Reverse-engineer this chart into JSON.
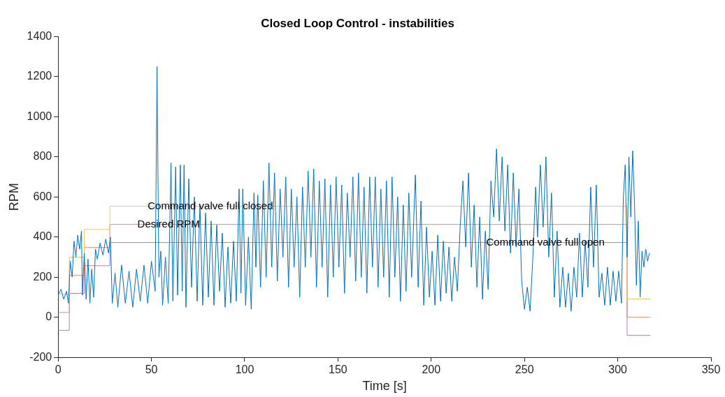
{
  "chart_data": {
    "type": "line",
    "title": "Closed Loop Control - instabilities",
    "xlabel": "Time [s]",
    "ylabel": "RPM",
    "xlim": [
      0,
      350
    ],
    "xticks": [
      0,
      50,
      100,
      150,
      200,
      250,
      300,
      350
    ],
    "ylim": [
      -200,
      1400
    ],
    "yticks": [
      -200,
      0,
      200,
      400,
      600,
      800,
      1000,
      1200,
      1400
    ],
    "grid": false,
    "marker": "none",
    "line_style": "solid",
    "annotations": [
      {
        "text": "Command valve full closed",
        "x": 48,
        "y": 554
      },
      {
        "text": "Desired RPM",
        "x": 42.5,
        "y": 463
      },
      {
        "text": "Command valve full open",
        "x": 229.5,
        "y": 373
      }
    ],
    "series": [
      {
        "type": "line",
        "color": "#0072bd",
        "x": [
          0,
          1.5,
          3,
          4.5,
          5.5,
          6.5,
          7.5,
          8.5,
          9.5,
          10.5,
          11.5,
          12.5,
          13,
          14,
          15,
          16,
          17,
          18,
          19,
          20,
          21,
          22.5,
          24,
          25.5,
          27,
          28,
          29,
          30.5,
          32,
          34,
          36,
          38,
          40,
          42,
          44,
          46,
          48,
          50,
          52,
          53,
          54,
          55,
          56,
          57.5,
          59,
          60.5,
          61.5,
          63,
          64,
          65.5,
          66.5,
          67.5,
          68.5,
          70,
          71.5,
          73,
          74.5,
          76,
          77.5,
          79,
          80.5,
          82,
          83.5,
          85,
          86.5,
          88,
          89.5,
          91,
          92.5,
          94,
          95.5,
          97,
          98,
          99,
          100.5,
          102,
          103.5,
          105,
          106,
          107,
          108.5,
          110,
          111.5,
          113,
          114.5,
          116,
          117.5,
          119,
          120.5,
          122,
          123.5,
          125,
          126.5,
          128,
          129.5,
          131,
          132.5,
          134,
          135.5,
          137,
          138.5,
          140,
          141.5,
          143,
          144.5,
          146,
          147.5,
          149,
          150.5,
          152,
          153.5,
          155,
          156.5,
          158,
          159.5,
          161,
          162.5,
          164,
          165.5,
          167,
          168.5,
          170,
          171.5,
          173,
          174.5,
          176,
          177.5,
          179,
          180.5,
          182,
          183.5,
          185,
          186.5,
          188,
          189.5,
          191.5,
          193,
          194.5,
          196,
          197.5,
          199,
          200.5,
          202,
          203.5,
          205,
          206.5,
          208,
          209.5,
          211,
          212.5,
          214,
          215.5,
          217,
          218.5,
          220,
          221.5,
          223,
          224.5,
          226,
          227.5,
          229,
          230.5,
          232,
          233.5,
          235,
          236.5,
          238,
          239.5,
          241,
          242.5,
          244,
          245.5,
          247,
          248.5,
          250,
          251.5,
          253,
          254.5,
          256,
          257,
          258.5,
          260,
          261.5,
          263,
          264.5,
          266,
          267.5,
          269,
          270.5,
          272,
          273.5,
          275,
          276.5,
          278,
          279.5,
          281,
          282.5,
          284,
          285.5,
          287,
          288.5,
          290,
          291.5,
          293,
          294.5,
          296,
          297.5,
          299,
          300.5,
          302,
          303,
          304,
          305,
          306,
          307,
          308,
          309,
          310,
          311,
          312,
          313,
          314,
          315,
          316,
          317
        ],
        "values": [
          110,
          140,
          90,
          130,
          70,
          280,
          200,
          380,
          300,
          410,
          340,
          430,
          110,
          320,
          90,
          290,
          70,
          240,
          100,
          340,
          290,
          370,
          310,
          390,
          320,
          400,
          70,
          220,
          50,
          260,
          70,
          230,
          50,
          240,
          80,
          260,
          70,
          280,
          130,
          1250,
          200,
          330,
          60,
          300,
          70,
          770,
          80,
          750,
          110,
          760,
          130,
          760,
          50,
          690,
          150,
          600,
          80,
          560,
          60,
          520,
          100,
          480,
          60,
          460,
          130,
          420,
          50,
          350,
          70,
          380,
          80,
          640,
          120,
          640,
          60,
          400,
          40,
          620,
          250,
          610,
          150,
          680,
          200,
          770,
          250,
          720,
          180,
          640,
          300,
          700,
          150,
          640,
          250,
          600,
          100,
          650,
          250,
          730,
          300,
          740,
          150,
          680,
          250,
          690,
          100,
          660,
          200,
          700,
          250,
          660,
          120,
          620,
          300,
          700,
          180,
          720,
          200,
          650,
          120,
          700,
          250,
          700,
          150,
          640,
          200,
          680,
          100,
          700,
          200,
          600,
          80,
          560,
          130,
          620,
          200,
          710,
          150,
          580,
          60,
          450,
          100,
          330,
          60,
          410,
          80,
          380,
          120,
          350,
          80,
          300,
          130,
          450,
          680,
          350,
          720,
          250,
          560,
          150,
          500,
          90,
          430,
          140,
          680,
          500,
          840,
          480,
          800,
          430,
          760,
          320,
          720,
          350,
          640,
          180,
          40,
          150,
          30,
          300,
          650,
          400,
          760,
          450,
          800,
          300,
          620,
          100,
          430,
          50,
          250,
          50,
          220,
          30,
          250,
          100,
          420,
          100,
          380,
          150,
          650,
          250,
          660,
          100,
          220,
          60,
          250,
          60,
          230,
          80,
          230,
          70,
          600,
          760,
          300,
          800,
          500,
          830,
          560,
          160,
          480,
          100,
          330,
          250,
          340,
          280,
          320
        ]
      },
      {
        "type": "step",
        "color": "#f2c55c",
        "x": [
          0,
          6,
          14,
          27.7,
          305,
          317.5
        ],
        "values": [
          115,
          300,
          438,
          554,
          91,
          91
        ]
      },
      {
        "type": "step",
        "color": "#e88a6c",
        "x": [
          0,
          6,
          14,
          27.7,
          305,
          317.5
        ],
        "values": [
          24,
          209,
          348,
          463,
          0,
          0
        ]
      },
      {
        "type": "step",
        "color": "#b57cc0",
        "x": [
          0,
          6,
          14,
          27.7,
          305,
          317.5
        ],
        "values": [
          -65,
          119,
          257,
          373,
          -90,
          -90
        ]
      }
    ]
  }
}
